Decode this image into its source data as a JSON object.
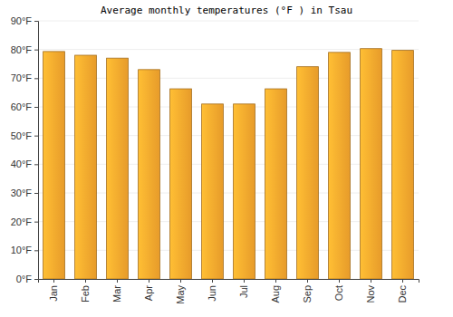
{
  "chart_data": {
    "type": "bar",
    "title": "Average monthly temperatures (°F ) in Tsau",
    "categories": [
      "Jan",
      "Feb",
      "Mar",
      "Apr",
      "May",
      "Jun",
      "Jul",
      "Aug",
      "Sep",
      "Oct",
      "Nov",
      "Dec"
    ],
    "values": [
      79.3,
      78,
      77,
      73,
      66.3,
      61,
      61,
      66.3,
      74,
      79,
      80.3,
      79.7
    ],
    "color": "#fca92e",
    "ylim": [
      0,
      90
    ],
    "yticks": [
      {
        "value": 0,
        "label": "0°F"
      },
      {
        "value": 10,
        "label": "10°F"
      },
      {
        "value": 20,
        "label": "20°F"
      },
      {
        "value": 30,
        "label": "30°F"
      },
      {
        "value": 40,
        "label": "40°F"
      },
      {
        "value": 50,
        "label": "50°F"
      },
      {
        "value": 60,
        "label": "60°F"
      },
      {
        "value": 70,
        "label": "70°F"
      },
      {
        "value": 80,
        "label": "80°F"
      },
      {
        "value": 90,
        "label": "90°F"
      }
    ],
    "grid": true
  }
}
